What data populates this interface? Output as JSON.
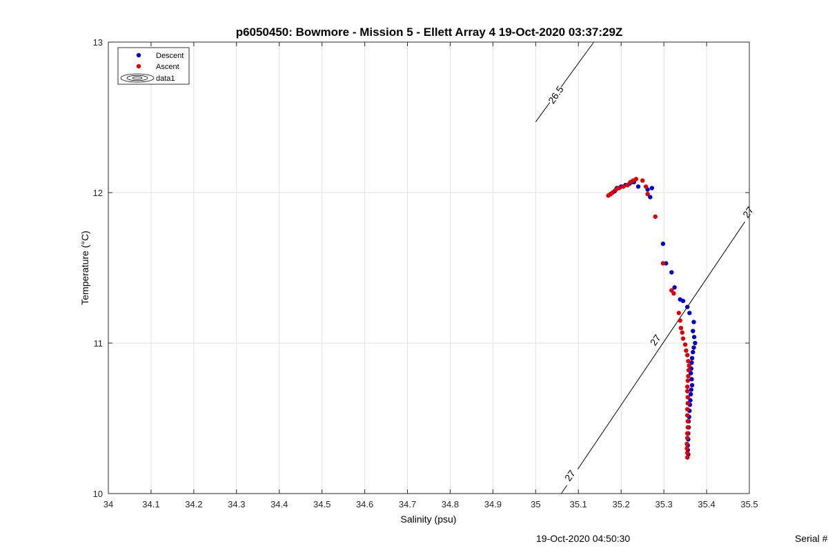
{
  "chart_data": {
    "type": "scatter",
    "title": "p6050450: Bowmore - Mission 5 - Ellett Array 4 19-Oct-2020 03:37:29Z",
    "xlabel": "Salinity (psu)",
    "ylabel": "Temperature (°C)",
    "xlim": [
      34,
      35.5
    ],
    "ylim": [
      10,
      13
    ],
    "x_ticks": [
      "34",
      "34.1",
      "34.2",
      "34.3",
      "34.4",
      "34.5",
      "34.6",
      "34.7",
      "34.8",
      "34.9",
      "35",
      "35.1",
      "35.2",
      "35.3",
      "35.4",
      "35.5"
    ],
    "y_ticks": [
      "10",
      "11",
      "12",
      "13"
    ],
    "grid": true,
    "legend_placement": "top-left",
    "legend": [
      {
        "label": "Descent",
        "color": "#0000cc",
        "marker": "dot"
      },
      {
        "label": "Ascent",
        "color": "#dd0000",
        "marker": "dot"
      },
      {
        "label": "data1",
        "color": "#000000",
        "marker": "contour"
      }
    ],
    "series": [
      {
        "name": "Descent",
        "color": "#0000cc",
        "points": [
          [
            35.175,
            11.99
          ],
          [
            35.18,
            12.0
          ],
          [
            35.185,
            12.01
          ],
          [
            35.19,
            12.03
          ],
          [
            35.195,
            12.03
          ],
          [
            35.2,
            12.04
          ],
          [
            35.205,
            12.04
          ],
          [
            35.21,
            12.05
          ],
          [
            35.215,
            12.05
          ],
          [
            35.22,
            12.06
          ],
          [
            35.225,
            12.07
          ],
          [
            35.23,
            12.07
          ],
          [
            35.24,
            12.04
          ],
          [
            35.262,
            12.02
          ],
          [
            35.272,
            12.03
          ],
          [
            35.268,
            11.97
          ],
          [
            35.298,
            11.66
          ],
          [
            35.305,
            11.53
          ],
          [
            35.318,
            11.47
          ],
          [
            35.325,
            11.37
          ],
          [
            35.338,
            11.29
          ],
          [
            35.345,
            11.28
          ],
          [
            35.355,
            11.24
          ],
          [
            35.36,
            11.2
          ],
          [
            35.37,
            11.14
          ],
          [
            35.368,
            11.08
          ],
          [
            35.371,
            11.04
          ],
          [
            35.373,
            11.0
          ],
          [
            35.37,
            10.97
          ],
          [
            35.368,
            10.94
          ],
          [
            35.366,
            10.9
          ],
          [
            35.365,
            10.87
          ],
          [
            35.364,
            10.83
          ],
          [
            35.363,
            10.8
          ],
          [
            35.365,
            10.76
          ],
          [
            35.366,
            10.72
          ],
          [
            35.364,
            10.69
          ],
          [
            35.363,
            10.66
          ],
          [
            35.362,
            10.62
          ],
          [
            35.361,
            10.59
          ],
          [
            35.36,
            10.55
          ],
          [
            35.359,
            10.51
          ],
          [
            35.358,
            10.48
          ],
          [
            35.358,
            10.44
          ],
          [
            35.357,
            10.4
          ],
          [
            35.357,
            10.36
          ],
          [
            35.356,
            10.32
          ],
          [
            35.356,
            10.29
          ],
          [
            35.357,
            10.26
          ]
        ]
      },
      {
        "name": "Ascent",
        "color": "#dd0000",
        "points": [
          [
            35.17,
            11.98
          ],
          [
            35.175,
            11.99
          ],
          [
            35.18,
            12.0
          ],
          [
            35.188,
            12.02
          ],
          [
            35.195,
            12.03
          ],
          [
            35.205,
            12.04
          ],
          [
            35.215,
            12.05
          ],
          [
            35.222,
            12.07
          ],
          [
            35.228,
            12.08
          ],
          [
            35.235,
            12.09
          ],
          [
            35.25,
            12.08
          ],
          [
            35.258,
            12.04
          ],
          [
            35.262,
            11.99
          ],
          [
            35.28,
            11.84
          ],
          [
            35.298,
            11.53
          ],
          [
            35.318,
            11.35
          ],
          [
            35.323,
            11.33
          ],
          [
            35.335,
            11.2
          ],
          [
            35.338,
            11.15
          ],
          [
            35.34,
            11.1
          ],
          [
            35.343,
            11.07
          ],
          [
            35.345,
            11.03
          ],
          [
            35.35,
            10.99
          ],
          [
            35.352,
            10.95
          ],
          [
            35.355,
            10.92
          ],
          [
            35.357,
            10.88
          ],
          [
            35.359,
            10.85
          ],
          [
            35.358,
            10.82
          ],
          [
            35.357,
            10.78
          ],
          [
            35.356,
            10.75
          ],
          [
            35.355,
            10.71
          ],
          [
            35.355,
            10.68
          ],
          [
            35.356,
            10.64
          ],
          [
            35.356,
            10.6
          ],
          [
            35.355,
            10.56
          ],
          [
            35.355,
            10.52
          ],
          [
            35.356,
            10.48
          ],
          [
            35.356,
            10.44
          ],
          [
            35.355,
            10.4
          ],
          [
            35.355,
            10.37
          ],
          [
            35.354,
            10.33
          ],
          [
            35.354,
            10.3
          ],
          [
            35.355,
            10.27
          ],
          [
            35.355,
            10.24
          ]
        ]
      }
    ],
    "density_contours": [
      {
        "label": "26.5",
        "from": [
          35.0,
          12.47
        ],
        "to": [
          35.136,
          13.0
        ]
      },
      {
        "label": "27",
        "from": [
          35.06,
          10.0
        ],
        "to": [
          35.5,
          11.85
        ]
      }
    ],
    "contour_labels": [
      {
        "text": "26.5",
        "at": [
          35.047,
          12.65
        ]
      },
      {
        "text": "27",
        "at": [
          35.28,
          11.02
        ]
      },
      {
        "text": "27",
        "at": [
          35.08,
          10.12
        ]
      },
      {
        "text": "27",
        "at": [
          35.497,
          11.87
        ]
      }
    ]
  },
  "footer": {
    "timestamp": "19-Oct-2020 04:50:30",
    "serial_label": "Serial #"
  }
}
